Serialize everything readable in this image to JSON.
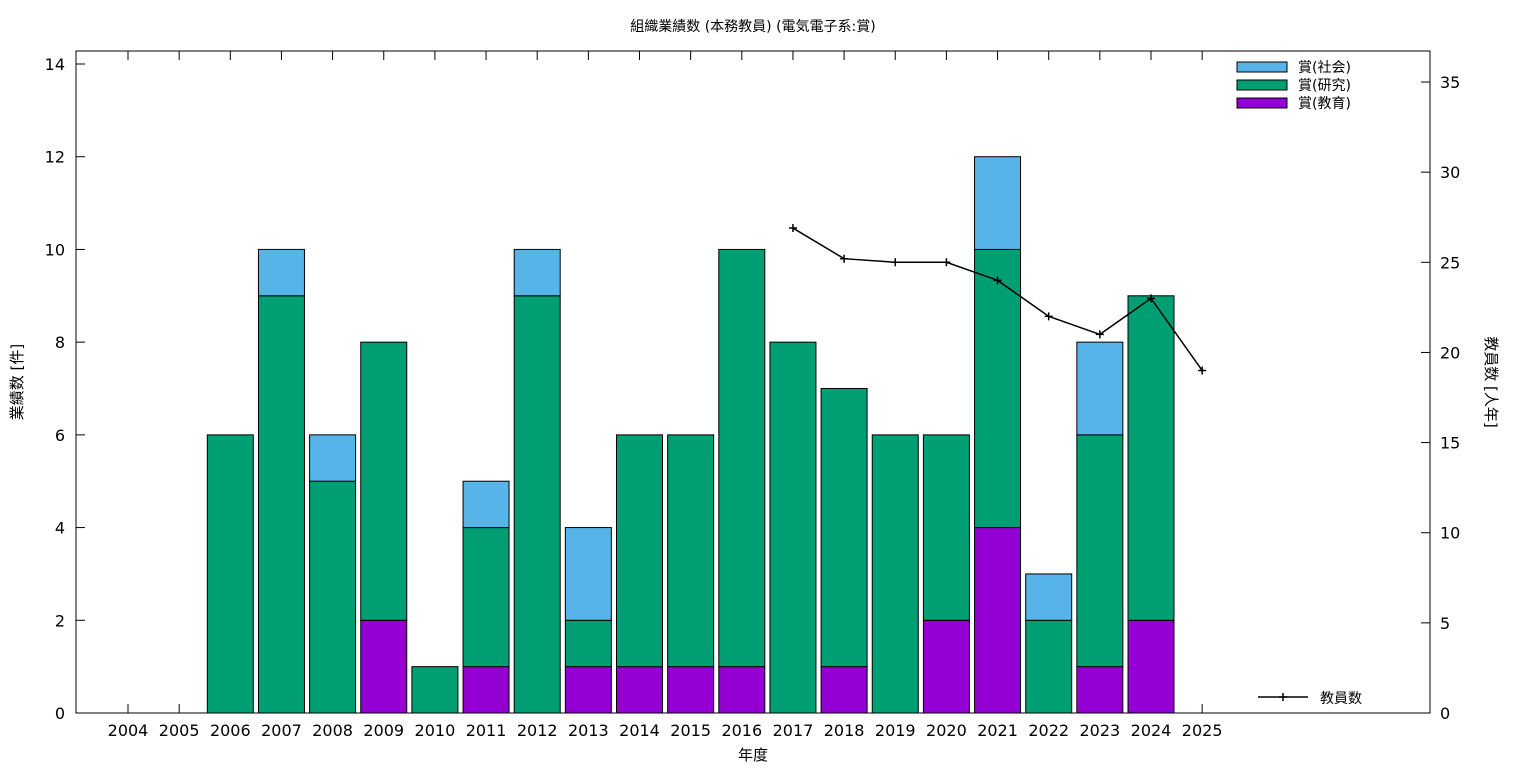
{
  "chart_data": {
    "type": "bar",
    "stacked": true,
    "title": "組織業績数 (本務教員) (電気電子系:賞)",
    "xlabel": "年度",
    "ylabel": "業績数 [件]",
    "y2label": "教員数 [人年]",
    "ylim": [
      0,
      14
    ],
    "y2lim": [
      0,
      36
    ],
    "yticks": [
      "0",
      "2",
      "4",
      "6",
      "8",
      "10",
      "12",
      "14"
    ],
    "y2ticks": [
      "0",
      "5",
      "10",
      "15",
      "20",
      "25",
      "30",
      "35"
    ],
    "categories": [
      "2004",
      "2005",
      "2006",
      "2007",
      "2008",
      "2009",
      "2010",
      "2011",
      "2012",
      "2013",
      "2014",
      "2015",
      "2016",
      "2017",
      "2018",
      "2019",
      "2020",
      "2021",
      "2022",
      "2023",
      "2024",
      "2025"
    ],
    "series": [
      {
        "name": "賞(教育)",
        "color": "#9400d3",
        "values": [
          0,
          0,
          0,
          0,
          0,
          2,
          0,
          1,
          0,
          1,
          1,
          1,
          1,
          0,
          1,
          0,
          2,
          4,
          0,
          1,
          2,
          0
        ]
      },
      {
        "name": "賞(研究)",
        "color": "#009e73",
        "values": [
          0,
          0,
          6,
          9,
          5,
          6,
          1,
          3,
          9,
          1,
          5,
          5,
          9,
          8,
          6,
          6,
          4,
          6,
          2,
          5,
          7,
          0
        ]
      },
      {
        "name": "賞(社会)",
        "color": "#56b4e9",
        "values": [
          0,
          0,
          0,
          1,
          1,
          0,
          0,
          1,
          1,
          2,
          0,
          0,
          0,
          0,
          0,
          0,
          0,
          2,
          1,
          2,
          0,
          0
        ]
      }
    ],
    "line_series": {
      "name": "教員数",
      "axis": "y2",
      "color": "#000000",
      "x": [
        "2017",
        "2018",
        "2019",
        "2020",
        "2021",
        "2022",
        "2023",
        "2024",
        "2025"
      ],
      "values": [
        26.9,
        25.2,
        25.0,
        25.0,
        24.0,
        22.0,
        21.0,
        23.0,
        19.0
      ]
    },
    "legend_position": "top-right",
    "line_legend_position": "bottom-right",
    "grid": false
  }
}
